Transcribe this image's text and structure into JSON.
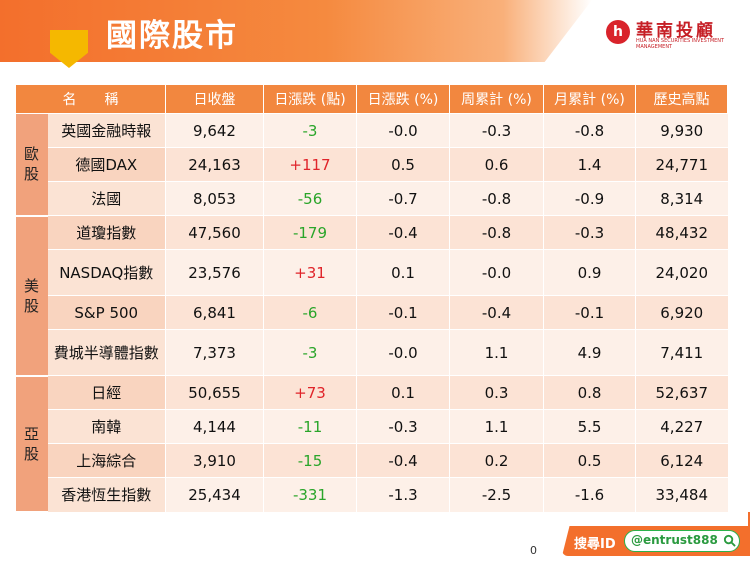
{
  "header": {
    "title": "國際股市"
  },
  "logo": {
    "name": "華南投顧",
    "sub": "HUA NAN SECURITIES INVESTMENT MANAGEMENT"
  },
  "table": {
    "columns": [
      "名　　稱",
      "日收盤",
      "日漲跌 (點)",
      "日漲跌 (%)",
      "周累計 (%)",
      "月累計 (%)",
      "歷史高點"
    ],
    "groups": [
      {
        "region": "歐股",
        "rows": [
          {
            "name": "英國金融時報",
            "close": "9,642",
            "chg": "-3",
            "chg_pct": "-0.0",
            "week": "-0.3",
            "month": "-0.8",
            "high": "9,930"
          },
          {
            "name": "德國DAX",
            "close": "24,163",
            "chg": "+117",
            "chg_pct": "0.5",
            "week": "0.6",
            "month": "1.4",
            "high": "24,771"
          },
          {
            "name": "法國",
            "close": "8,053",
            "chg": "-56",
            "chg_pct": "-0.7",
            "week": "-0.8",
            "month": "-0.9",
            "high": "8,314"
          }
        ]
      },
      {
        "region": "美股",
        "rows": [
          {
            "name": "道瓊指數",
            "close": "47,560",
            "chg": "-179",
            "chg_pct": "-0.4",
            "week": "-0.8",
            "month": "-0.3",
            "high": "48,432"
          },
          {
            "name": "NASDAQ指數",
            "close": "23,576",
            "chg": "+31",
            "chg_pct": "0.1",
            "week": "-0.0",
            "month": "0.9",
            "high": "24,020"
          },
          {
            "name": "S&P 500",
            "close": "6,841",
            "chg": "-6",
            "chg_pct": "-0.1",
            "week": "-0.4",
            "month": "-0.1",
            "high": "6,920"
          },
          {
            "name": "費城半導體指數",
            "close": "7,373",
            "chg": "-3",
            "chg_pct": "-0.0",
            "week": "1.1",
            "month": "4.9",
            "high": "7,411"
          }
        ]
      },
      {
        "region": "亞股",
        "rows": [
          {
            "name": "日經",
            "close": "50,655",
            "chg": "+73",
            "chg_pct": "0.1",
            "week": "0.3",
            "month": "0.8",
            "high": "52,637"
          },
          {
            "name": "南韓",
            "close": "4,144",
            "chg": "-11",
            "chg_pct": "-0.3",
            "week": "1.1",
            "month": "5.5",
            "high": "4,227"
          },
          {
            "name": "上海綜合",
            "close": "3,910",
            "chg": "-15",
            "chg_pct": "-0.4",
            "week": "0.2",
            "month": "0.5",
            "high": "6,124"
          },
          {
            "name": "香港恆生指數",
            "close": "25,434",
            "chg": "-331",
            "chg_pct": "-1.3",
            "week": "-2.5",
            "month": "-1.6",
            "high": "33,484"
          }
        ]
      }
    ]
  },
  "footer": {
    "search_label": "搜尋ID",
    "search_id": "@entrust888",
    "page": "0"
  },
  "colors": {
    "accent": "#f36f2c",
    "up": "#e0242a",
    "down": "#2aa52a"
  }
}
